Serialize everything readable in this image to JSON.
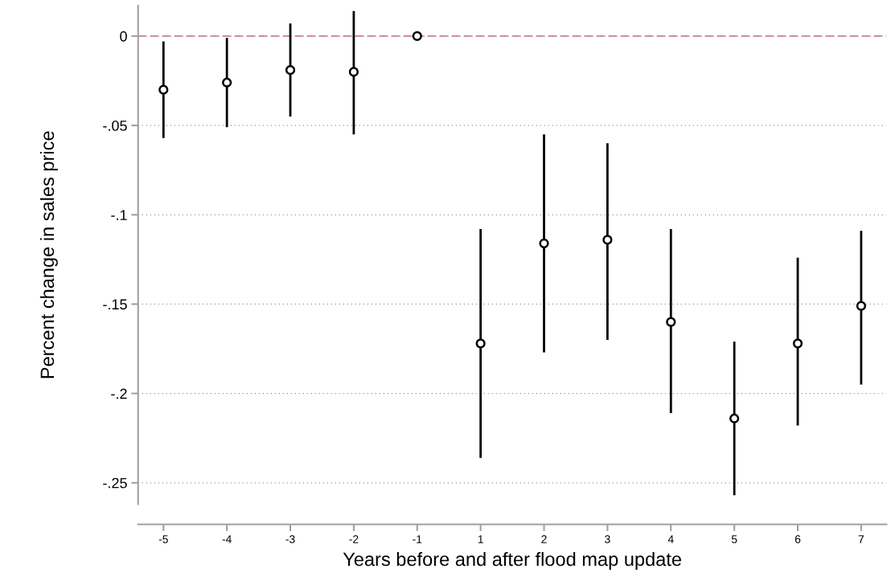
{
  "chart_data": {
    "type": "scatter",
    "xlabel": "Years before and after flood map update",
    "ylabel": "Percent change in sales price",
    "categories": [
      "-5",
      "-4",
      "-3",
      "-2",
      "-1",
      "1",
      "2",
      "3",
      "4",
      "5",
      "6",
      "7"
    ],
    "values": [
      -0.03,
      -0.026,
      -0.019,
      -0.02,
      0,
      -0.172,
      -0.116,
      -0.114,
      -0.16,
      -0.214,
      -0.172,
      -0.151
    ],
    "errors": [
      [
        -0.057,
        -0.003
      ],
      [
        -0.051,
        -0.001
      ],
      [
        -0.045,
        0.007
      ],
      [
        -0.055,
        0.014
      ],
      null,
      [
        -0.236,
        -0.108
      ],
      [
        -0.177,
        -0.055
      ],
      [
        -0.17,
        -0.06
      ],
      [
        -0.211,
        -0.108
      ],
      [
        -0.257,
        -0.171
      ],
      [
        -0.218,
        -0.124
      ],
      [
        -0.195,
        -0.109
      ]
    ],
    "color": "#000000",
    "marker": "circle",
    "ylim": [
      -0.262,
      0.017
    ],
    "yticks": [
      {
        "value": 0,
        "label": "0"
      },
      {
        "value": -0.05,
        "label": "-.05"
      },
      {
        "value": -0.1,
        "label": "-.1"
      },
      {
        "value": -0.15,
        "label": "-.15"
      },
      {
        "value": -0.2,
        "label": "-.2"
      },
      {
        "value": -0.25,
        "label": "-.25"
      }
    ],
    "grid": "y",
    "ref_lines": [
      {
        "axis": "y",
        "value": 0,
        "color": "#c97ca9",
        "line_style": "dashed"
      }
    ]
  }
}
